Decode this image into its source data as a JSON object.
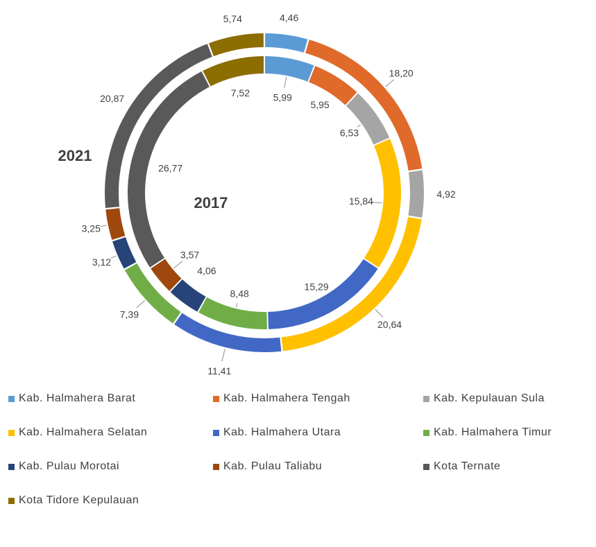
{
  "chart_data": {
    "type": "doughnut",
    "categories": [
      "Kab. Halmahera Barat",
      "Kab. Halmahera Tengah",
      "Kab. Kepulauan Sula",
      "Kab. Halmahera Selatan",
      "Kab. Halmahera Utara",
      "Kab. Halmahera Timur",
      "Kab. Pulau Morotai",
      "Kab. Pulau Taliabu",
      "Kota Ternate",
      "Kota Tidore Kepulauan"
    ],
    "colors": [
      "#5b9bd5",
      "#e06a2a",
      "#a5a5a5",
      "#ffc000",
      "#4168c4",
      "#70ad47",
      "#264478",
      "#9e480e",
      "#595959",
      "#8c6d00"
    ],
    "series": [
      {
        "name": "2021",
        "ring": "outer",
        "values": [
          4.46,
          18.2,
          4.92,
          20.64,
          11.41,
          7.39,
          3.12,
          3.25,
          20.87,
          5.74
        ],
        "labels": [
          "4,46",
          "18,20",
          "4,92",
          "20,64",
          "11,41",
          "7,39",
          "3,12",
          "3,25",
          "20,87",
          "5,74"
        ]
      },
      {
        "name": "2017",
        "ring": "inner",
        "values": [
          5.99,
          5.95,
          6.53,
          15.84,
          15.29,
          8.48,
          4.06,
          3.57,
          26.77,
          7.52
        ],
        "labels": [
          "5,99",
          "5,95",
          "6,53",
          "15,84",
          "15,29",
          "8,48",
          "4,06",
          "3,57",
          "26,77",
          "7,52"
        ]
      }
    ],
    "legend_position": "bottom"
  }
}
